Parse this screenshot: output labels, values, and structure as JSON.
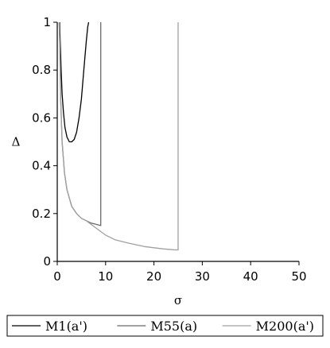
{
  "chart_data": {
    "type": "line",
    "title": "",
    "xlabel": "σ",
    "ylabel": "Δ",
    "xlim": [
      0,
      50
    ],
    "ylim": [
      0,
      1
    ],
    "x_ticks": [
      0,
      10,
      20,
      30,
      40,
      50
    ],
    "y_ticks": [
      0,
      0.2,
      0.4,
      0.6,
      0.8,
      1
    ],
    "x_tick_labels": [
      "0",
      "10",
      "20",
      "30",
      "40",
      "50"
    ],
    "y_tick_labels": [
      "0",
      "0.2",
      "0.4",
      "0.6",
      "0.8",
      "1"
    ],
    "grid": false,
    "legend_position": "bottom",
    "series": [
      {
        "name": "M1(a')",
        "color": "#000000",
        "x": [
          0.5,
          0.6,
          0.8,
          1.0,
          1.3,
          1.6,
          2.0,
          2.5,
          3.0,
          3.5,
          4.0,
          4.5,
          5.0,
          5.5,
          6.0,
          6.3,
          6.5
        ],
        "y": [
          1.0,
          0.93,
          0.8,
          0.7,
          0.62,
          0.56,
          0.52,
          0.5,
          0.5,
          0.51,
          0.54,
          0.6,
          0.68,
          0.8,
          0.92,
          0.98,
          1.0
        ]
      },
      {
        "name": "M55(a)",
        "color": "#6a6a6a",
        "x": [
          0.4,
          0.5,
          0.7,
          1.0,
          1.5,
          2.0,
          3.0,
          4.0,
          5.0,
          6.0,
          7.0,
          8.0,
          9.0,
          9.0
        ],
        "y": [
          1.0,
          0.93,
          0.68,
          0.5,
          0.37,
          0.3,
          0.23,
          0.2,
          0.18,
          0.17,
          0.16,
          0.155,
          0.15,
          1.0
        ]
      },
      {
        "name": "M200(a')",
        "color": "#a0a0a0",
        "x": [
          0.4,
          0.5,
          0.7,
          1.0,
          1.5,
          2.0,
          3.0,
          4.0,
          5.0,
          6.0,
          8.0,
          10.0,
          12.0,
          15.0,
          18.0,
          20.0,
          22.0,
          24.0,
          25.0,
          25.0
        ],
        "y": [
          1.0,
          0.93,
          0.68,
          0.5,
          0.37,
          0.3,
          0.23,
          0.2,
          0.18,
          0.17,
          0.14,
          0.11,
          0.09,
          0.075,
          0.062,
          0.057,
          0.052,
          0.049,
          0.048,
          1.0
        ]
      }
    ]
  }
}
